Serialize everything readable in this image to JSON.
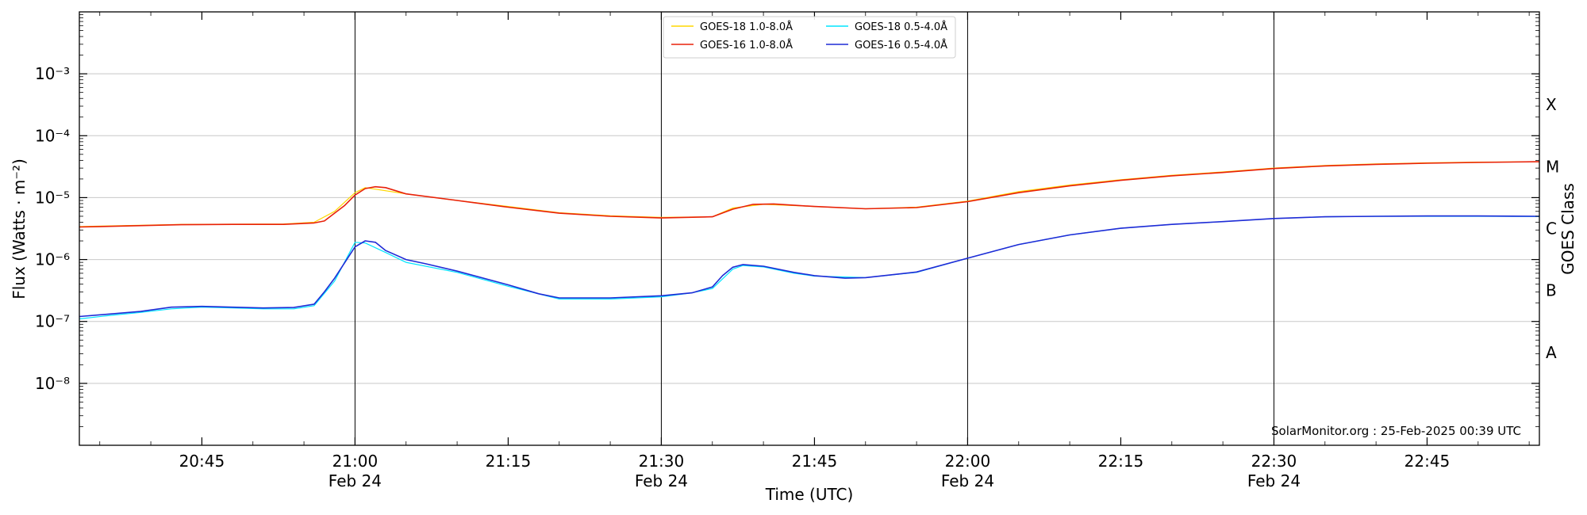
{
  "chart_data": {
    "type": "line",
    "y_scale": "log",
    "xlabel": "Time (UTC)",
    "ylabel": "Flux (Watts · m⁻²)",
    "right_ylabel": "GOES Class",
    "xlim": [
      "20:33",
      "22:56"
    ],
    "ylim": [
      1e-09,
      0.01
    ],
    "grid": "horizontal at decades, vertical at half-hours",
    "legend_position": "top-center",
    "y_ticks": [
      {
        "value": 1e-08,
        "label": "10⁻⁸"
      },
      {
        "value": 1e-07,
        "label": "10⁻⁷"
      },
      {
        "value": 1e-06,
        "label": "10⁻⁶"
      },
      {
        "value": 1e-05,
        "label": "10⁻⁵"
      },
      {
        "value": 0.0001,
        "label": "10⁻⁴"
      },
      {
        "value": 0.001,
        "label": "10⁻³"
      }
    ],
    "x_ticks": [
      {
        "time": "20:45",
        "label": "20:45",
        "sublabel": ""
      },
      {
        "time": "21:00",
        "label": "21:00",
        "sublabel": "Feb 24"
      },
      {
        "time": "21:15",
        "label": "21:15",
        "sublabel": ""
      },
      {
        "time": "21:30",
        "label": "21:30",
        "sublabel": "Feb 24"
      },
      {
        "time": "21:45",
        "label": "21:45",
        "sublabel": ""
      },
      {
        "time": "22:00",
        "label": "22:00",
        "sublabel": "Feb 24"
      },
      {
        "time": "22:15",
        "label": "22:15",
        "sublabel": ""
      },
      {
        "time": "22:30",
        "label": "22:30",
        "sublabel": "Feb 24"
      },
      {
        "time": "22:45",
        "label": "22:45",
        "sublabel": ""
      }
    ],
    "vertical_lines": [
      "21:00",
      "21:30",
      "22:00",
      "22:30"
    ],
    "goes_classes": [
      {
        "label": "A",
        "value": 3.16e-08
      },
      {
        "label": "B",
        "value": 3.16e-07
      },
      {
        "label": "C",
        "value": 3.16e-06
      },
      {
        "label": "M",
        "value": 3.16e-05
      },
      {
        "label": "X",
        "value": 0.000316
      }
    ],
    "series": [
      {
        "name": "GOES-18 1.0-8.0Å",
        "color": "#ffd700",
        "width": 1.2,
        "points": [
          [
            "20:33",
            3.4e-06
          ],
          [
            "20:38",
            3.55e-06
          ],
          [
            "20:43",
            3.7e-06
          ],
          [
            "20:48",
            3.72e-06
          ],
          [
            "20:53",
            3.75e-06
          ],
          [
            "20:56",
            4e-06
          ],
          [
            "20:58",
            6e-06
          ],
          [
            "21:00",
            1.2e-05
          ],
          [
            "21:01",
            1.45e-05
          ],
          [
            "21:05",
            1.15e-05
          ],
          [
            "21:10",
            9e-06
          ],
          [
            "21:15",
            7.2e-06
          ],
          [
            "21:20",
            5.7e-06
          ],
          [
            "21:25",
            5.1e-06
          ],
          [
            "21:30",
            4.8e-06
          ],
          [
            "21:35",
            4.9e-06
          ],
          [
            "21:37",
            6.8e-06
          ],
          [
            "21:40",
            7.8e-06
          ],
          [
            "21:45",
            7.2e-06
          ],
          [
            "21:50",
            6.6e-06
          ],
          [
            "21:55",
            7e-06
          ],
          [
            "22:00",
            8.8e-06
          ],
          [
            "22:05",
            1.25e-05
          ],
          [
            "22:10",
            1.6e-05
          ],
          [
            "22:15",
            1.95e-05
          ],
          [
            "22:20",
            2.3e-05
          ],
          [
            "22:25",
            2.6e-05
          ],
          [
            "22:30",
            3e-05
          ],
          [
            "22:35",
            3.3e-05
          ],
          [
            "22:40",
            3.5e-05
          ],
          [
            "22:45",
            3.65e-05
          ],
          [
            "22:50",
            3.75e-05
          ],
          [
            "22:56",
            3.8e-05
          ]
        ]
      },
      {
        "name": "GOES-18 0.5-4.0Å",
        "color": "#00e5ff",
        "width": 1.2,
        "points": [
          [
            "20:33",
            1.1e-07
          ],
          [
            "20:36",
            1.25e-07
          ],
          [
            "20:39",
            1.4e-07
          ],
          [
            "20:42",
            1.6e-07
          ],
          [
            "20:45",
            1.7e-07
          ],
          [
            "20:48",
            1.65e-07
          ],
          [
            "20:51",
            1.6e-07
          ],
          [
            "20:54",
            1.6e-07
          ],
          [
            "20:56",
            1.8e-07
          ],
          [
            "20:58",
            4.5e-07
          ],
          [
            "21:00",
            1.9e-06
          ],
          [
            "21:01",
            1.85e-06
          ],
          [
            "21:03",
            1.3e-06
          ],
          [
            "21:05",
            9e-07
          ],
          [
            "21:10",
            6.2e-07
          ],
          [
            "21:15",
            3.7e-07
          ],
          [
            "21:20",
            2.3e-07
          ],
          [
            "21:25",
            2.3e-07
          ],
          [
            "21:30",
            2.5e-07
          ],
          [
            "21:33",
            2.9e-07
          ],
          [
            "21:35",
            3.4e-07
          ],
          [
            "21:37",
            7e-07
          ],
          [
            "21:38",
            8e-07
          ],
          [
            "21:40",
            7.6e-07
          ],
          [
            "21:43",
            6e-07
          ],
          [
            "21:45",
            5.4e-07
          ],
          [
            "21:50",
            5.1e-07
          ],
          [
            "21:55",
            6.2e-07
          ],
          [
            "22:00",
            1.05e-06
          ],
          [
            "22:05",
            1.75e-06
          ],
          [
            "22:10",
            2.5e-06
          ],
          [
            "22:15",
            3.2e-06
          ],
          [
            "22:20",
            3.7e-06
          ],
          [
            "22:25",
            4.1e-06
          ],
          [
            "22:30",
            4.6e-06
          ],
          [
            "22:35",
            4.9e-06
          ],
          [
            "22:40",
            5e-06
          ],
          [
            "22:45",
            5e-06
          ],
          [
            "22:50",
            5e-06
          ],
          [
            "22:56",
            4.95e-06
          ]
        ]
      },
      {
        "name": "GOES-16 1.0-8.0Å",
        "color": "#e8210a",
        "width": 1.6,
        "points": [
          [
            "20:33",
            3.35e-06
          ],
          [
            "20:38",
            3.5e-06
          ],
          [
            "20:43",
            3.65e-06
          ],
          [
            "20:48",
            3.7e-06
          ],
          [
            "20:53",
            3.7e-06
          ],
          [
            "20:56",
            3.9e-06
          ],
          [
            "20:57",
            4.2e-06
          ],
          [
            "20:59",
            7.5e-06
          ],
          [
            "21:00",
            1.1e-05
          ],
          [
            "21:01",
            1.4e-05
          ],
          [
            "21:02",
            1.5e-05
          ],
          [
            "21:03",
            1.45e-05
          ],
          [
            "21:05",
            1.15e-05
          ],
          [
            "21:10",
            9e-06
          ],
          [
            "21:15",
            7e-06
          ],
          [
            "21:20",
            5.6e-06
          ],
          [
            "21:25",
            5e-06
          ],
          [
            "21:30",
            4.7e-06
          ],
          [
            "21:35",
            4.9e-06
          ],
          [
            "21:37",
            6.5e-06
          ],
          [
            "21:39",
            7.8e-06
          ],
          [
            "21:41",
            7.9e-06
          ],
          [
            "21:45",
            7.2e-06
          ],
          [
            "21:50",
            6.6e-06
          ],
          [
            "21:55",
            6.9e-06
          ],
          [
            "22:00",
            8.6e-06
          ],
          [
            "22:05",
            1.2e-05
          ],
          [
            "22:10",
            1.55e-05
          ],
          [
            "22:15",
            1.9e-05
          ],
          [
            "22:20",
            2.25e-05
          ],
          [
            "22:25",
            2.55e-05
          ],
          [
            "22:30",
            2.95e-05
          ],
          [
            "22:35",
            3.25e-05
          ],
          [
            "22:40",
            3.45e-05
          ],
          [
            "22:45",
            3.6e-05
          ],
          [
            "22:50",
            3.7e-05
          ],
          [
            "22:56",
            3.8e-05
          ]
        ]
      },
      {
        "name": "GOES-16 0.5-4.0Å",
        "color": "#1f2bd6",
        "width": 1.6,
        "points": [
          [
            "20:33",
            1.2e-07
          ],
          [
            "20:36",
            1.32e-07
          ],
          [
            "20:39",
            1.45e-07
          ],
          [
            "20:42",
            1.7e-07
          ],
          [
            "20:45",
            1.75e-07
          ],
          [
            "20:48",
            1.7e-07
          ],
          [
            "20:51",
            1.65e-07
          ],
          [
            "20:54",
            1.68e-07
          ],
          [
            "20:56",
            1.9e-07
          ],
          [
            "20:57",
            3e-07
          ],
          [
            "20:58",
            5e-07
          ],
          [
            "21:00",
            1.6e-06
          ],
          [
            "21:01",
            2e-06
          ],
          [
            "21:02",
            1.9e-06
          ],
          [
            "21:03",
            1.4e-06
          ],
          [
            "21:05",
            1e-06
          ],
          [
            "21:07",
            8.5e-07
          ],
          [
            "21:10",
            6.5e-07
          ],
          [
            "21:15",
            3.9e-07
          ],
          [
            "21:18",
            2.8e-07
          ],
          [
            "21:20",
            2.4e-07
          ],
          [
            "21:25",
            2.4e-07
          ],
          [
            "21:30",
            2.6e-07
          ],
          [
            "21:33",
            2.9e-07
          ],
          [
            "21:35",
            3.6e-07
          ],
          [
            "21:36",
            5.5e-07
          ],
          [
            "21:37",
            7.5e-07
          ],
          [
            "21:38",
            8.3e-07
          ],
          [
            "21:40",
            7.8e-07
          ],
          [
            "21:43",
            6.2e-07
          ],
          [
            "21:45",
            5.5e-07
          ],
          [
            "21:48",
            5e-07
          ],
          [
            "21:50",
            5.1e-07
          ],
          [
            "21:55",
            6.3e-07
          ],
          [
            "22:00",
            1.05e-06
          ],
          [
            "22:05",
            1.75e-06
          ],
          [
            "22:10",
            2.5e-06
          ],
          [
            "22:15",
            3.2e-06
          ],
          [
            "22:20",
            3.7e-06
          ],
          [
            "22:25",
            4.1e-06
          ],
          [
            "22:30",
            4.6e-06
          ],
          [
            "22:35",
            4.9e-06
          ],
          [
            "22:40",
            5e-06
          ],
          [
            "22:45",
            5.05e-06
          ],
          [
            "22:50",
            5.05e-06
          ],
          [
            "22:56",
            5e-06
          ]
        ]
      }
    ],
    "annotation": "SolarMonitor.org : 25-Feb-2025 00:39 UTC"
  }
}
